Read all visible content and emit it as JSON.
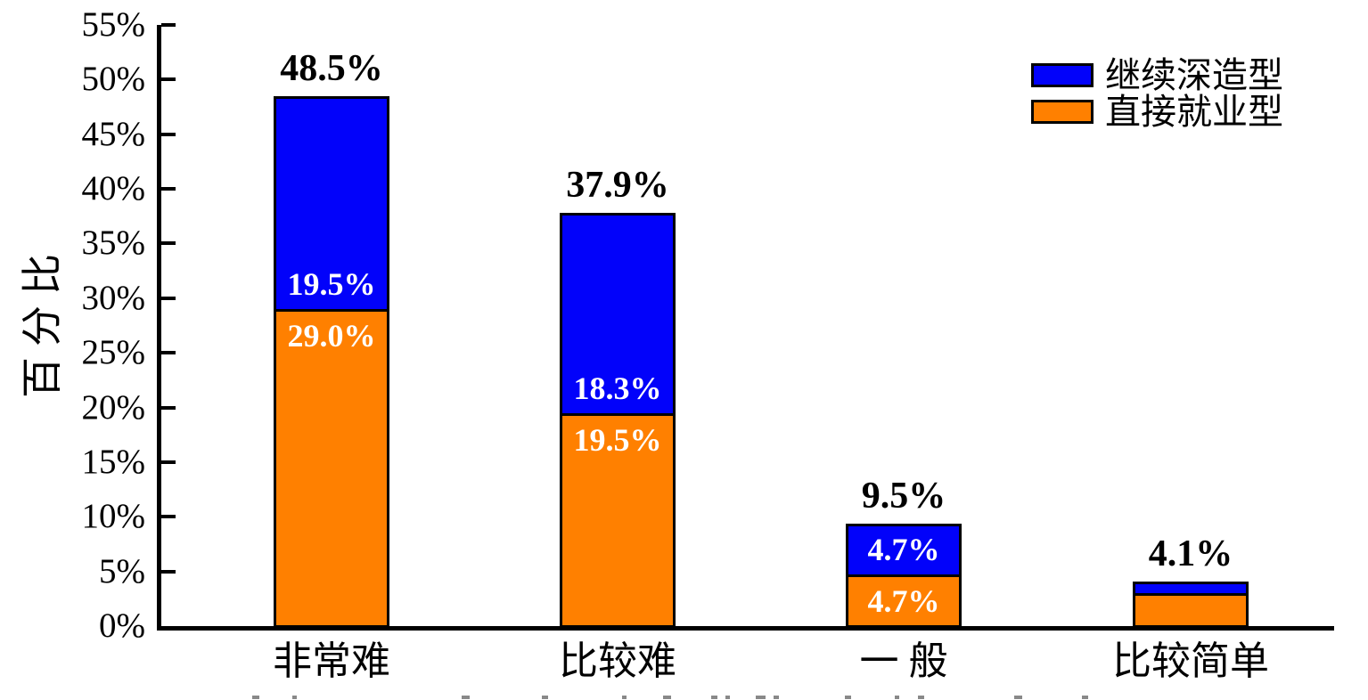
{
  "page": {
    "background": "#ffffff"
  },
  "chart_data": {
    "type": "bar",
    "stacked": true,
    "title": "",
    "ylabel": "百分比",
    "xlabel": "",
    "categories": [
      "非常难",
      "比较难",
      "一 般",
      "比较简单"
    ],
    "series": [
      {
        "name": "直接就业型",
        "color": "#ff8000",
        "values": [
          29.0,
          19.5,
          4.7,
          3.0
        ],
        "segment_labels": [
          "29.0%",
          "19.5%",
          "4.7%",
          ""
        ]
      },
      {
        "name": "继续深造型",
        "color": "#0202fa",
        "values": [
          19.5,
          18.3,
          4.7,
          1.1
        ],
        "segment_labels": [
          "19.5%",
          "18.3%",
          "4.7%",
          ""
        ]
      }
    ],
    "totals": [
      "48.5%",
      "37.9%",
      "9.5%",
      "4.1%"
    ],
    "y_ticks": [
      "0%",
      "5%",
      "10%",
      "15%",
      "20%",
      "25%",
      "30%",
      "35%",
      "40%",
      "45%",
      "50%",
      "55%"
    ],
    "y_tick_step": 5,
    "ylim": [
      0,
      55
    ],
    "grid": false,
    "legend": {
      "position": "top-right",
      "entries": [
        {
          "label": "继续深造型",
          "color": "#0202fa"
        },
        {
          "label": "直接就业型",
          "color": "#ff8000"
        }
      ]
    },
    "bar_border_color": "#000000",
    "inside_label_color": "#ffffff",
    "total_label_color": "#000000"
  }
}
